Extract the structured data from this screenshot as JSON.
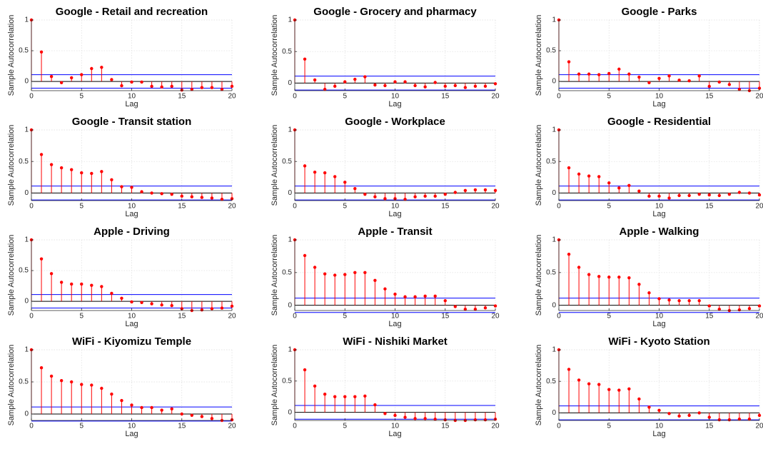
{
  "chart_data": [
    {
      "type": "stem",
      "title": "Google - Retail and recreation",
      "xlabel": "Lag",
      "ylabel": "Sample Autocorrelation",
      "x": [
        0,
        1,
        2,
        3,
        4,
        5,
        6,
        7,
        8,
        9,
        10,
        11,
        12,
        13,
        14,
        15,
        16,
        17,
        18,
        19,
        20
      ],
      "values": [
        1,
        0.48,
        0.08,
        -0.02,
        0.06,
        0.11,
        0.21,
        0.23,
        0.03,
        -0.07,
        -0.01,
        -0.01,
        -0.08,
        -0.09,
        -0.08,
        -0.14,
        -0.13,
        -0.1,
        -0.1,
        -0.13,
        -0.08
      ],
      "bounds": [
        0.11,
        -0.11
      ],
      "color": "#ff0000",
      "bound_color": "#0000ff",
      "xlim": [
        0,
        20
      ],
      "ylim": [
        -0.15,
        1
      ],
      "xticks": [
        0,
        5,
        10,
        15,
        20
      ],
      "yticks": [
        0,
        0.5,
        1
      ],
      "grid": true
    },
    {
      "type": "stem",
      "title": "Google - Grocery and pharmacy",
      "xlabel": "Lag",
      "ylabel": "Sample Autocorrelation",
      "x": [
        0,
        1,
        2,
        3,
        4,
        5,
        6,
        7,
        8,
        9,
        10,
        11,
        12,
        13,
        14,
        15,
        16,
        17,
        18,
        19,
        20
      ],
      "values": [
        1,
        0.38,
        0.05,
        -0.1,
        -0.05,
        0.02,
        0.06,
        0.1,
        -0.03,
        -0.04,
        0.02,
        0.02,
        -0.04,
        -0.06,
        0.01,
        -0.05,
        -0.04,
        -0.07,
        -0.05,
        -0.05,
        -0.01
      ],
      "bounds": [
        0.11,
        -0.11
      ],
      "color": "#ff0000",
      "bound_color": "#0000ff",
      "xlim": [
        0,
        20
      ],
      "ylim": [
        -0.12,
        1
      ],
      "xticks": [
        0,
        5,
        10,
        15,
        20
      ],
      "yticks": [
        0,
        0.5,
        1
      ],
      "grid": true
    },
    {
      "type": "stem",
      "title": "Google - Parks",
      "xlabel": "Lag",
      "ylabel": "Sample Autocorrelation",
      "x": [
        0,
        1,
        2,
        3,
        4,
        5,
        6,
        7,
        8,
        9,
        10,
        11,
        12,
        13,
        14,
        15,
        16,
        17,
        18,
        19,
        20
      ],
      "values": [
        1,
        0.32,
        0.12,
        0.12,
        0.11,
        0.13,
        0.2,
        0.12,
        0.07,
        -0.02,
        0.05,
        0.09,
        0.02,
        0.01,
        0.09,
        -0.08,
        -0.01,
        -0.05,
        -0.13,
        -0.15,
        -0.11
      ],
      "bounds": [
        0.11,
        -0.11
      ],
      "color": "#ff0000",
      "bound_color": "#0000ff",
      "xlim": [
        0,
        20
      ],
      "ylim": [
        -0.15,
        1
      ],
      "xticks": [
        0,
        5,
        10,
        15,
        20
      ],
      "yticks": [
        0,
        0.5,
        1
      ],
      "grid": true
    },
    {
      "type": "stem",
      "title": "Google - Transit station",
      "xlabel": "Lag",
      "ylabel": "Sample Autocorrelation",
      "x": [
        0,
        1,
        2,
        3,
        4,
        5,
        6,
        7,
        8,
        9,
        10,
        11,
        12,
        13,
        14,
        15,
        16,
        17,
        18,
        19,
        20
      ],
      "values": [
        1,
        0.61,
        0.45,
        0.4,
        0.37,
        0.32,
        0.31,
        0.34,
        0.21,
        0.1,
        0.09,
        0.02,
        0,
        -0.01,
        -0.02,
        -0.05,
        -0.06,
        -0.07,
        -0.08,
        -0.1,
        -0.09
      ],
      "bounds": [
        0.11,
        -0.11
      ],
      "color": "#ff0000",
      "bound_color": "#0000ff",
      "xlim": [
        0,
        20
      ],
      "ylim": [
        -0.12,
        1
      ],
      "xticks": [
        0,
        5,
        10,
        15,
        20
      ],
      "yticks": [
        0,
        0.5,
        1
      ],
      "grid": true
    },
    {
      "type": "stem",
      "title": "Google - Workplace",
      "xlabel": "Lag",
      "ylabel": "Sample Autocorrelation",
      "x": [
        0,
        1,
        2,
        3,
        4,
        5,
        6,
        7,
        8,
        9,
        10,
        11,
        12,
        13,
        14,
        15,
        16,
        17,
        18,
        19,
        20
      ],
      "values": [
        1,
        0.43,
        0.33,
        0.32,
        0.26,
        0.17,
        0.07,
        -0.02,
        -0.06,
        -0.09,
        -0.09,
        -0.1,
        -0.06,
        -0.05,
        -0.05,
        -0.02,
        0.01,
        0.04,
        0.05,
        0.05,
        0.04
      ],
      "bounds": [
        0.11,
        -0.11
      ],
      "color": "#ff0000",
      "bound_color": "#0000ff",
      "xlim": [
        0,
        20
      ],
      "ylim": [
        -0.12,
        1
      ],
      "xticks": [
        0,
        5,
        10,
        15,
        20
      ],
      "yticks": [
        0,
        0.5,
        1
      ],
      "grid": true
    },
    {
      "type": "stem",
      "title": "Google - Residential",
      "xlabel": "Lag",
      "ylabel": "Sample Autocorrelation",
      "x": [
        0,
        1,
        2,
        3,
        4,
        5,
        6,
        7,
        8,
        9,
        10,
        11,
        12,
        13,
        14,
        15,
        16,
        17,
        18,
        19,
        20
      ],
      "values": [
        1,
        0.4,
        0.3,
        0.27,
        0.26,
        0.16,
        0.08,
        0.12,
        0.03,
        -0.05,
        -0.05,
        -0.08,
        -0.04,
        -0.04,
        -0.02,
        -0.03,
        -0.04,
        -0.02,
        0.01,
        0,
        -0.03
      ],
      "bounds": [
        0.11,
        -0.11
      ],
      "color": "#ff0000",
      "bound_color": "#0000ff",
      "xlim": [
        0,
        20
      ],
      "ylim": [
        -0.12,
        1
      ],
      "xticks": [
        0,
        5,
        10,
        15,
        20
      ],
      "yticks": [
        0,
        0.5,
        1
      ],
      "grid": true
    },
    {
      "type": "stem",
      "title": "Apple - Driving",
      "xlabel": "Lag",
      "ylabel": "Sample Autocorrelation",
      "x": [
        0,
        1,
        2,
        3,
        4,
        5,
        6,
        7,
        8,
        9,
        10,
        11,
        12,
        13,
        14,
        15,
        16,
        17,
        18,
        19,
        20
      ],
      "values": [
        1,
        0.69,
        0.45,
        0.31,
        0.28,
        0.28,
        0.26,
        0.24,
        0.13,
        0.05,
        -0.01,
        -0.02,
        -0.04,
        -0.06,
        -0.07,
        -0.12,
        -0.15,
        -0.14,
        -0.12,
        -0.11,
        -0.08
      ],
      "bounds": [
        0.11,
        -0.11
      ],
      "color": "#ff0000",
      "bound_color": "#0000ff",
      "xlim": [
        0,
        20
      ],
      "ylim": [
        -0.15,
        1
      ],
      "xticks": [
        0,
        5,
        10,
        15,
        20
      ],
      "yticks": [
        0,
        0.5,
        1
      ],
      "grid": true
    },
    {
      "type": "stem",
      "title": "Apple - Transit",
      "xlabel": "Lag",
      "ylabel": "Sample Autocorrelation",
      "x": [
        0,
        1,
        2,
        3,
        4,
        5,
        6,
        7,
        8,
        9,
        10,
        11,
        12,
        13,
        14,
        15,
        16,
        17,
        18,
        19,
        20
      ],
      "values": [
        1,
        0.76,
        0.58,
        0.48,
        0.46,
        0.47,
        0.5,
        0.5,
        0.38,
        0.25,
        0.17,
        0.13,
        0.13,
        0.14,
        0.14,
        0.07,
        -0.02,
        -0.06,
        -0.06,
        -0.04,
        -0.01
      ],
      "bounds": [
        0.11,
        -0.11
      ],
      "color": "#ff0000",
      "bound_color": "#0000ff",
      "xlim": [
        0,
        20
      ],
      "ylim": [
        -0.08,
        1
      ],
      "xticks": [
        0,
        5,
        10,
        15,
        20
      ],
      "yticks": [
        0,
        0.5,
        1
      ],
      "grid": true
    },
    {
      "type": "stem",
      "title": "Apple - Walking",
      "xlabel": "Lag",
      "ylabel": "Sample Autocorrelation",
      "x": [
        0,
        1,
        2,
        3,
        4,
        5,
        6,
        7,
        8,
        9,
        10,
        11,
        12,
        13,
        14,
        15,
        16,
        17,
        18,
        19,
        20
      ],
      "values": [
        1,
        0.78,
        0.58,
        0.47,
        0.44,
        0.43,
        0.43,
        0.42,
        0.32,
        0.19,
        0.1,
        0.08,
        0.07,
        0.07,
        0.07,
        -0.01,
        -0.06,
        -0.08,
        -0.07,
        -0.05,
        -0.01
      ],
      "bounds": [
        0.11,
        -0.11
      ],
      "color": "#ff0000",
      "bound_color": "#0000ff",
      "xlim": [
        0,
        20
      ],
      "ylim": [
        -0.08,
        1
      ],
      "xticks": [
        0,
        5,
        10,
        15,
        20
      ],
      "yticks": [
        0,
        0.5,
        1
      ],
      "grid": true
    },
    {
      "type": "stem",
      "title": "WiFi - Kiyomizu Temple",
      "xlabel": "Lag",
      "ylabel": "Sample Autocorrelation",
      "x": [
        0,
        1,
        2,
        3,
        4,
        5,
        6,
        7,
        8,
        9,
        10,
        11,
        12,
        13,
        14,
        15,
        16,
        17,
        18,
        19,
        20
      ],
      "values": [
        1,
        0.72,
        0.59,
        0.52,
        0.5,
        0.46,
        0.45,
        0.4,
        0.31,
        0.21,
        0.14,
        0.1,
        0.1,
        0.06,
        0.08,
        0,
        -0.02,
        -0.04,
        -0.07,
        -0.1,
        -0.09
      ],
      "bounds": [
        0.11,
        -0.11
      ],
      "color": "#ff0000",
      "bound_color": "#0000ff",
      "xlim": [
        0,
        20
      ],
      "ylim": [
        -0.1,
        1
      ],
      "xticks": [
        0,
        5,
        10,
        15,
        20
      ],
      "yticks": [
        0,
        0.5,
        1
      ],
      "grid": true
    },
    {
      "type": "stem",
      "title": "WiFi - Nishiki Market",
      "xlabel": "Lag",
      "ylabel": "Sample Autocorrelation",
      "x": [
        0,
        1,
        2,
        3,
        4,
        5,
        6,
        7,
        8,
        9,
        10,
        11,
        12,
        13,
        14,
        15,
        16,
        17,
        18,
        19,
        20
      ],
      "values": [
        1,
        0.68,
        0.42,
        0.29,
        0.25,
        0.25,
        0.25,
        0.26,
        0.12,
        -0.02,
        -0.05,
        -0.08,
        -0.1,
        -0.1,
        -0.11,
        -0.12,
        -0.13,
        -0.13,
        -0.12,
        -0.12,
        -0.11
      ],
      "bounds": [
        0.11,
        -0.11
      ],
      "color": "#ff0000",
      "bound_color": "#0000ff",
      "xlim": [
        0,
        20
      ],
      "ylim": [
        -0.13,
        1
      ],
      "xticks": [
        0,
        5,
        10,
        15,
        20
      ],
      "yticks": [
        0,
        0.5,
        1
      ],
      "grid": true
    },
    {
      "type": "stem",
      "title": "WiFi - Kyoto Station",
      "xlabel": "Lag",
      "ylabel": "Sample Autocorrelation",
      "x": [
        0,
        1,
        2,
        3,
        4,
        5,
        6,
        7,
        8,
        9,
        10,
        11,
        12,
        13,
        14,
        15,
        16,
        17,
        18,
        19,
        20
      ],
      "values": [
        1,
        0.69,
        0.52,
        0.46,
        0.45,
        0.37,
        0.36,
        0.38,
        0.22,
        0.09,
        0.04,
        -0.01,
        -0.05,
        -0.04,
        0,
        -0.07,
        -0.11,
        -0.11,
        -0.1,
        -0.1,
        -0.04
      ],
      "bounds": [
        0.11,
        -0.11
      ],
      "color": "#ff0000",
      "bound_color": "#0000ff",
      "xlim": [
        0,
        20
      ],
      "ylim": [
        -0.12,
        1
      ],
      "xticks": [
        0,
        5,
        10,
        15,
        20
      ],
      "yticks": [
        0,
        0.5,
        1
      ],
      "grid": true
    }
  ]
}
